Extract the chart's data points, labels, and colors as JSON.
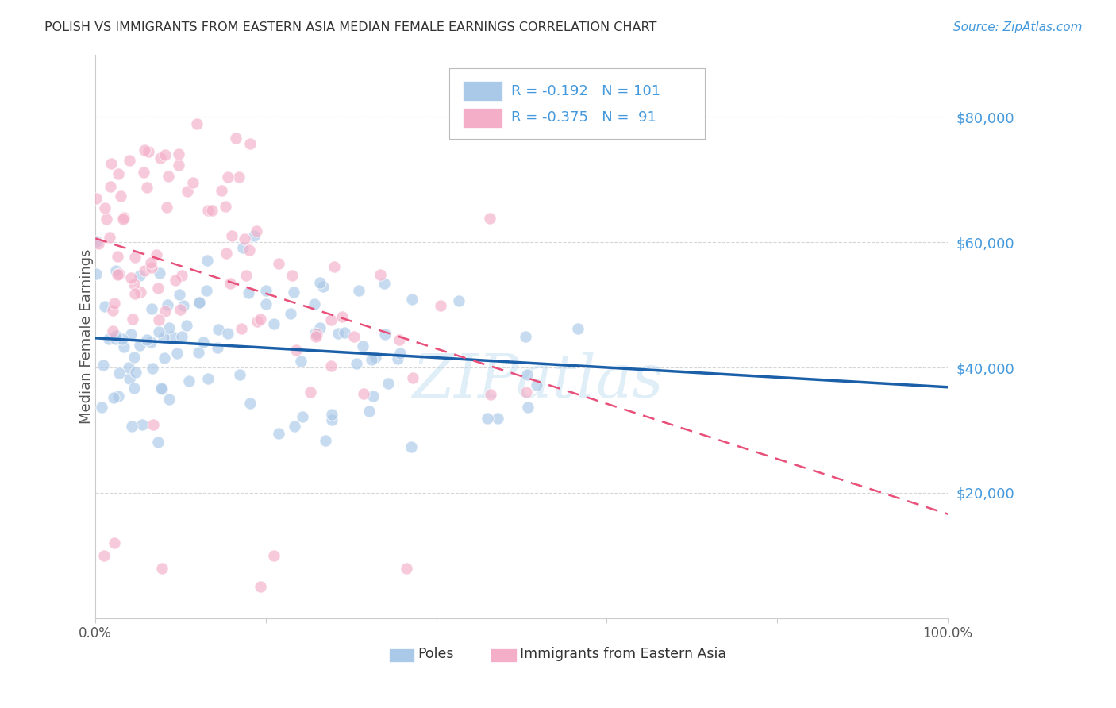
{
  "title": "POLISH VS IMMIGRANTS FROM EASTERN ASIA MEDIAN FEMALE EARNINGS CORRELATION CHART",
  "source": "Source: ZipAtlas.com",
  "ylabel": "Median Female Earnings",
  "yticks": [
    20000,
    40000,
    60000,
    80000
  ],
  "ytick_labels": [
    "$20,000",
    "$40,000",
    "$60,000",
    "$80,000"
  ],
  "watermark": "ZIPatlas",
  "poles_color": "#aac8e8",
  "poles_edge_color": "#aac8e8",
  "poles_line_color": "#1a5fa8",
  "eastern_asia_color": "#f4aec8",
  "eastern_asia_edge_color": "#f4aec8",
  "eastern_asia_line_color": "#e8507a",
  "background_color": "#ffffff",
  "grid_color": "#cccccc",
  "title_color": "#333333",
  "source_color": "#4499dd",
  "axis_label_color": "#4499dd",
  "ytick_color": "#4499dd",
  "poles_R": -0.192,
  "poles_N": 101,
  "eastern_R": -0.375,
  "eastern_N": 91,
  "xlim": [
    0.0,
    1.0
  ],
  "ylim": [
    0,
    90000
  ],
  "legend_R1": "-0.192",
  "legend_N1": "101",
  "legend_R2": "-0.375",
  "legend_N2": "91"
}
